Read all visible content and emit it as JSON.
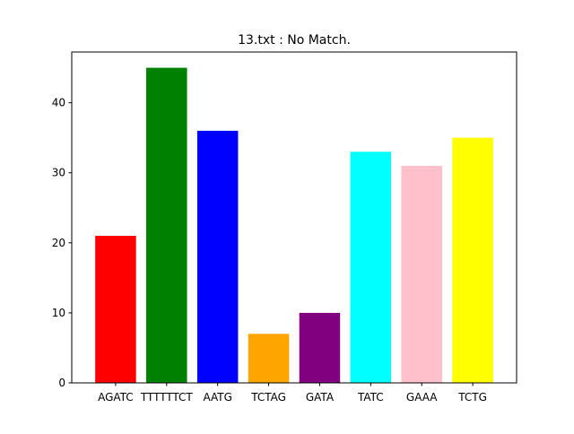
{
  "chart_data": {
    "type": "bar",
    "title": "13.txt : No Match.",
    "xlabel": "",
    "ylabel": "",
    "categories": [
      "AGATC",
      "TTTTTTCT",
      "AATG",
      "TCTAG",
      "GATA",
      "TATC",
      "GAAA",
      "TCTG"
    ],
    "values": [
      21,
      45,
      36,
      7,
      10,
      33,
      31,
      35
    ],
    "colors": [
      "#ff0000",
      "#008000",
      "#0000ff",
      "#ffa500",
      "#800080",
      "#00ffff",
      "#ffc0cb",
      "#ffff00"
    ],
    "ylim": [
      0,
      47.25
    ],
    "yticks": [
      0,
      10,
      20,
      30,
      40
    ],
    "grid": false
  }
}
